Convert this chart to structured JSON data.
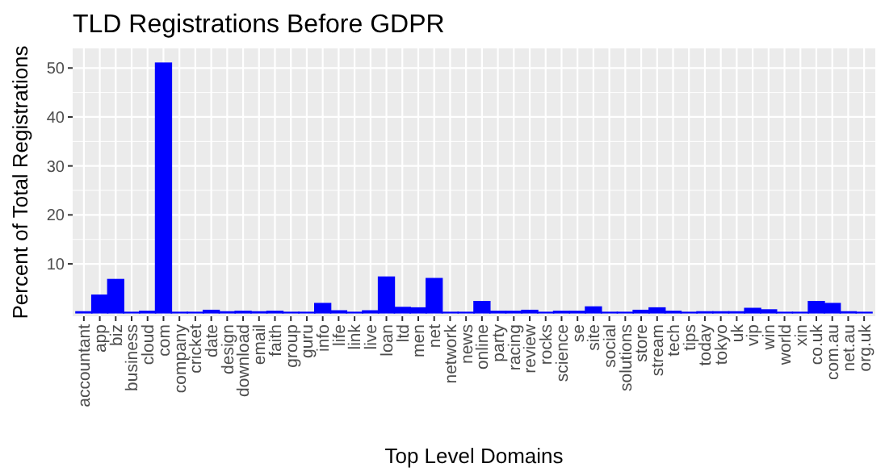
{
  "chart_data": {
    "type": "bar",
    "title": "TLD Registrations Before GDPR",
    "xlabel": "Top Level Domains",
    "ylabel": "Percent of Total Registrations",
    "categories": [
      "accountant",
      "app",
      "biz",
      "business",
      "cloud",
      "com",
      "company",
      "cricket",
      "date",
      "design",
      "download",
      "email",
      "faith",
      "group",
      "guru",
      "info",
      "life",
      "link",
      "live",
      "loan",
      "ltd",
      "men",
      "net",
      "network",
      "news",
      "online",
      "party",
      "racing",
      "review",
      "rocks",
      "science",
      "se",
      "site",
      "social",
      "solutions",
      "store",
      "stream",
      "tech",
      "tips",
      "today",
      "tokyo",
      "uk",
      "vip",
      "win",
      "world",
      "xin",
      "co.uk",
      "com.au",
      "net.au",
      "org.uk"
    ],
    "values": [
      0.2,
      3.6,
      6.8,
      0.1,
      0.3,
      51,
      0.1,
      0.1,
      0.5,
      0.2,
      0.3,
      0.2,
      0.3,
      0.1,
      0.1,
      1.9,
      0.4,
      0.1,
      0.4,
      7.3,
      1.1,
      1.0,
      7.0,
      0.1,
      0.1,
      2.3,
      0.3,
      0.3,
      0.5,
      0.1,
      0.3,
      0.3,
      1.2,
      0.1,
      0.1,
      0.5,
      1.0,
      0.3,
      0.1,
      0.2,
      0.2,
      0.2,
      0.9,
      0.6,
      0.1,
      0.1,
      2.3,
      1.9,
      0.2,
      0.1
    ],
    "color": "#0000ff",
    "ylim": [
      -0.7,
      54
    ],
    "yticks": [
      10,
      20,
      30,
      40,
      50
    ],
    "grid": true
  }
}
